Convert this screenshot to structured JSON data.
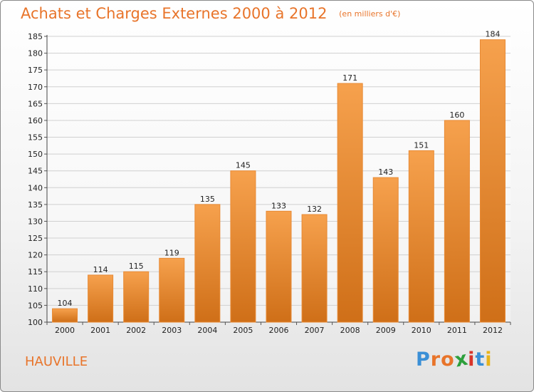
{
  "chart_data": {
    "type": "bar",
    "title": "Achats et Charges Externes 2000 à 2012",
    "unit": "(en milliers d'€)",
    "categories": [
      "2000",
      "2001",
      "2002",
      "2003",
      "2004",
      "2005",
      "2006",
      "2007",
      "2008",
      "2009",
      "2010",
      "2011",
      "2012"
    ],
    "values": [
      104,
      114,
      115,
      119,
      135,
      145,
      133,
      132,
      171,
      143,
      151,
      160,
      184
    ],
    "ylim": [
      100,
      185
    ],
    "yticks": [
      100,
      105,
      110,
      115,
      120,
      125,
      130,
      135,
      140,
      145,
      150,
      155,
      160,
      165,
      170,
      175,
      180,
      185
    ],
    "grid": true,
    "xlabel": "",
    "ylabel": "",
    "colors": {
      "bar_top": "#f6a14d",
      "bar_bottom": "#cf6f18",
      "bar_edge": "#e88a34",
      "grid": "#d0d0d0",
      "text_accent": "#e8742a"
    }
  },
  "location": "HAUVILLE",
  "logo": {
    "text": "Proxiti",
    "letters": [
      "P",
      "r",
      "o",
      "x",
      "i",
      "t",
      "i"
    ],
    "colors": [
      "#3a8fd6",
      "#e8742a",
      "#e8742a",
      "#2d9f3c",
      "#d8352a",
      "#3a8fd6",
      "#e8b41a"
    ]
  }
}
